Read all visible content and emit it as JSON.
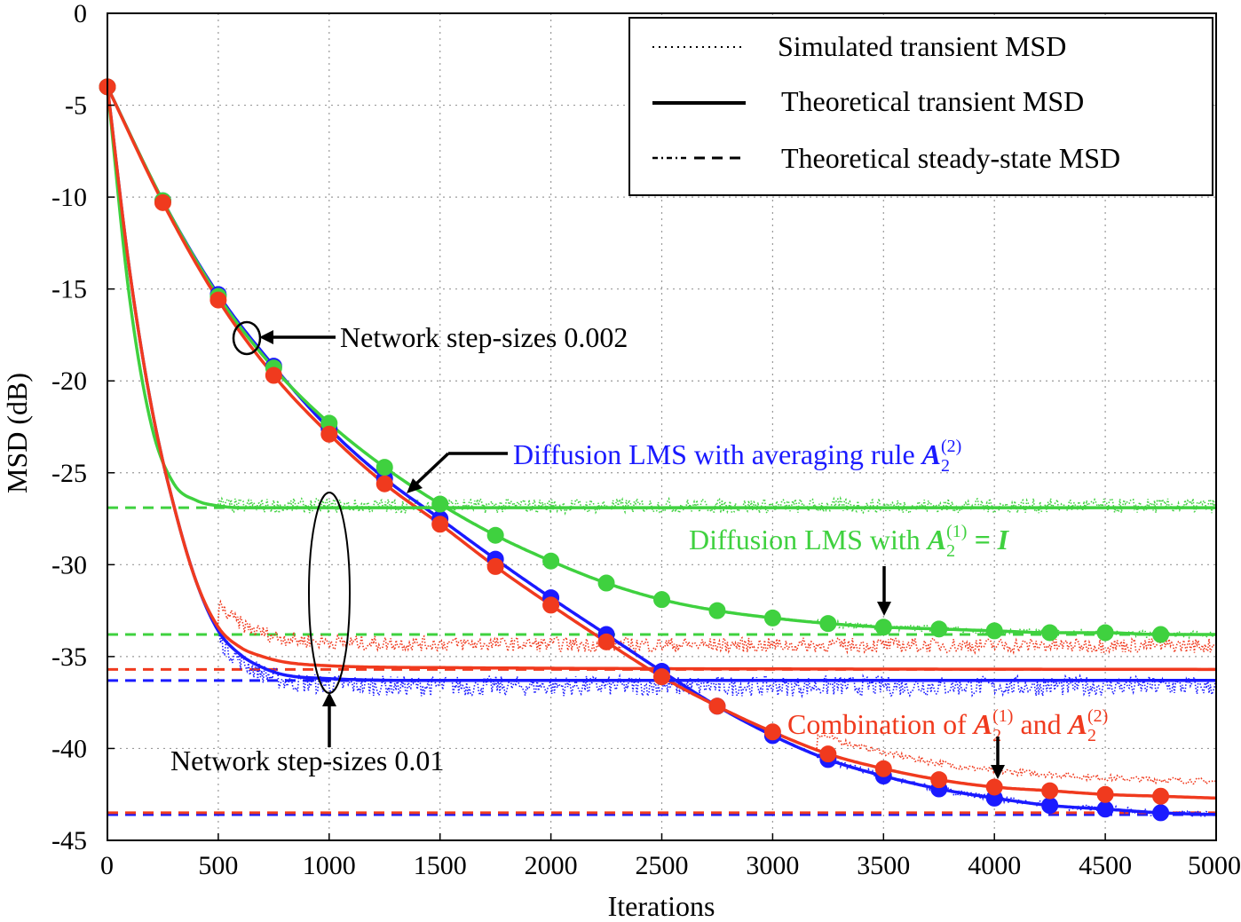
{
  "chart_data": {
    "type": "line",
    "xlabel": "Iterations",
    "ylabel": "MSD (dB)",
    "xlim": [
      0,
      5000
    ],
    "ylim": [
      -45,
      0
    ],
    "xticks": [
      0,
      500,
      1000,
      1500,
      2000,
      2500,
      3000,
      3500,
      4000,
      4500,
      5000
    ],
    "yticks": [
      0,
      -5,
      -10,
      -15,
      -20,
      -25,
      -30,
      -35,
      -40,
      -45
    ],
    "grid": true,
    "legend_position": "top-right",
    "legend": [
      {
        "label": "Simulated transient MSD",
        "style": "dotted"
      },
      {
        "label": "Theoretical transient MSD",
        "style": "solid"
      },
      {
        "label": "Theoretical steady-state MSD",
        "style": "dash-dot / dashed"
      }
    ],
    "colors": {
      "blue": "#1a1aff",
      "green": "#3fd13f",
      "red": "#f03a1e"
    },
    "series": [
      {
        "group": "Network step-sizes 0.002",
        "color": "blue",
        "x": [
          0,
          250,
          500,
          750,
          1000,
          1250,
          1500,
          1750,
          2000,
          2250,
          2500,
          2750,
          3000,
          3250,
          3500,
          3750,
          4000,
          4250,
          4500,
          4750,
          5000
        ],
        "y": [
          -4.0,
          -10.2,
          -15.3,
          -19.2,
          -22.6,
          -25.3,
          -27.5,
          -29.7,
          -31.8,
          -33.8,
          -35.8,
          -37.7,
          -39.3,
          -40.6,
          -41.5,
          -42.2,
          -42.7,
          -43.1,
          -43.3,
          -43.5,
          -43.6
        ],
        "steady": -43.6
      },
      {
        "group": "Network step-sizes 0.002",
        "color": "green",
        "x": [
          0,
          250,
          500,
          750,
          1000,
          1250,
          1500,
          1750,
          2000,
          2250,
          2500,
          2750,
          3000,
          3250,
          3500,
          3750,
          4000,
          4250,
          4500,
          4750,
          5000
        ],
        "y": [
          -4.0,
          -10.2,
          -15.4,
          -19.3,
          -22.3,
          -24.7,
          -26.7,
          -28.4,
          -29.8,
          -31.0,
          -31.9,
          -32.5,
          -32.9,
          -33.2,
          -33.4,
          -33.5,
          -33.6,
          -33.7,
          -33.7,
          -33.8,
          -33.8
        ],
        "steady": -33.8
      },
      {
        "group": "Network step-sizes 0.002",
        "color": "red",
        "x": [
          0,
          250,
          500,
          750,
          1000,
          1250,
          1500,
          1750,
          2000,
          2250,
          2500,
          2750,
          3000,
          3250,
          3500,
          3750,
          4000,
          4250,
          4500,
          4750,
          5000
        ],
        "y": [
          -4.0,
          -10.3,
          -15.6,
          -19.7,
          -22.9,
          -25.6,
          -27.8,
          -30.1,
          -32.2,
          -34.2,
          -36.1,
          -37.7,
          -39.1,
          -40.3,
          -41.1,
          -41.7,
          -42.1,
          -42.3,
          -42.5,
          -42.6,
          -42.7
        ],
        "steady": -43.5
      },
      {
        "group": "Network step-sizes 0.01",
        "color": "blue",
        "x": [
          0,
          100,
          200,
          300,
          400,
          500,
          600,
          700,
          800,
          1000,
          1500,
          5000
        ],
        "y": [
          -4.0,
          -14.0,
          -21.5,
          -26.8,
          -30.9,
          -33.6,
          -34.9,
          -35.6,
          -36.0,
          -36.2,
          -36.3,
          -36.3
        ],
        "steady": -36.3
      },
      {
        "group": "Network step-sizes 0.01",
        "color": "green",
        "x": [
          0,
          100,
          200,
          300,
          400,
          500,
          600,
          700,
          800,
          1000,
          1500,
          5000
        ],
        "y": [
          -4.0,
          -15.5,
          -22.5,
          -25.6,
          -26.5,
          -26.8,
          -26.9,
          -26.9,
          -26.9,
          -26.9,
          -26.9,
          -26.9
        ],
        "steady": -26.9
      },
      {
        "group": "Network step-sizes 0.01",
        "color": "red",
        "x": [
          0,
          100,
          200,
          300,
          400,
          500,
          600,
          700,
          800,
          1000,
          1500,
          5000
        ],
        "y": [
          -4.0,
          -14.0,
          -21.5,
          -26.8,
          -30.9,
          -33.4,
          -34.5,
          -35.0,
          -35.3,
          -35.5,
          -35.6,
          -35.7
        ],
        "steady": -35.7
      }
    ]
  },
  "annotations": {
    "slow": "Network step-sizes 0.002",
    "fast": "Network step-sizes 0.01",
    "avg_rule_text": "Diffusion LMS with averaging rule ",
    "identity_text": "Diffusion LMS with ",
    "identity_eq": "= I",
    "combo_text": "Combination of ",
    "combo_and": " and ",
    "matrix": "A",
    "sub": "2",
    "sup1": "(1)",
    "sup2": "(2)"
  }
}
